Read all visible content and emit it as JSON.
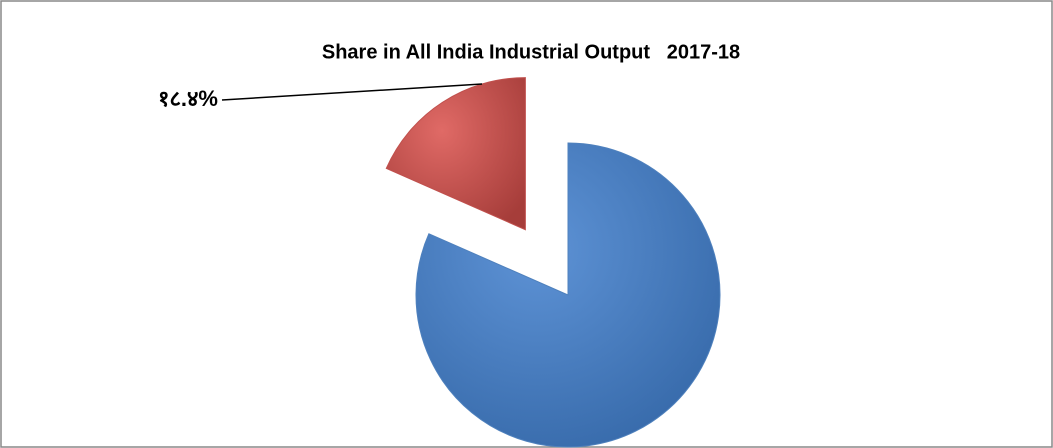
{
  "chart_data": {
    "type": "pie",
    "title": "Share in All India Industrial Output   2017-18",
    "values": [
      18.4,
      81.6
    ],
    "value_labels": [
      "१८.४%",
      null
    ],
    "colors": [
      "#c0504d",
      "#4f81bd"
    ],
    "explode": [
      true,
      false
    ]
  }
}
